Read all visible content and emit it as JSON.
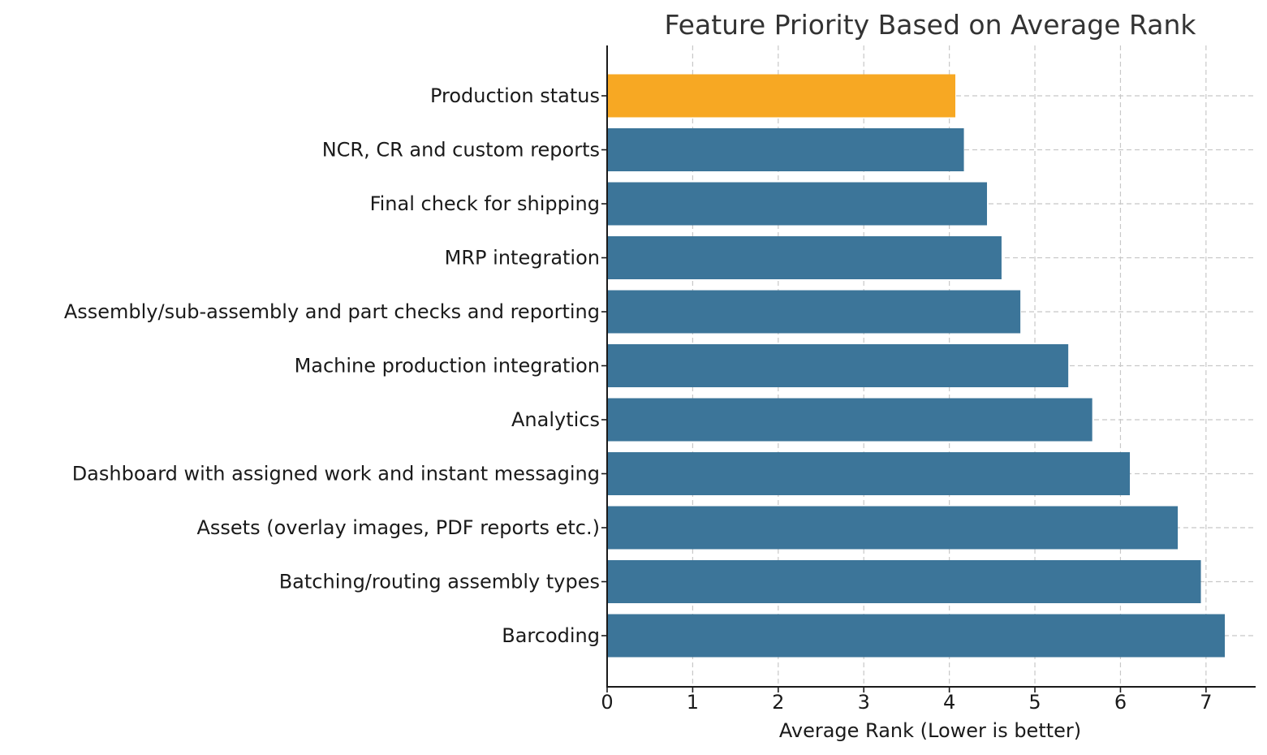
{
  "chart_data": {
    "type": "bar",
    "orientation": "horizontal",
    "title": "Feature Priority Based on Average Rank",
    "xlabel": "Average Rank (Lower is better)",
    "ylabel": "",
    "xlim": [
      0,
      7.58
    ],
    "xticks": [
      "0",
      "1",
      "2",
      "3",
      "4",
      "5",
      "6",
      "7"
    ],
    "grid": true,
    "categories": [
      "Production status",
      "NCR, CR and custom reports",
      "Final check for shipping",
      "MRP integration",
      "Assembly/sub-assembly and part checks and reporting",
      "Machine production integration",
      "Analytics",
      "Dashboard with assigned work and instant messaging",
      "Assets (overlay images, PDF reports etc.)",
      "Batching/routing assembly types",
      "Barcoding"
    ],
    "values": [
      4.07,
      4.17,
      4.44,
      4.61,
      4.83,
      5.39,
      5.67,
      6.11,
      6.67,
      6.94,
      7.22
    ],
    "highlight_index": 0,
    "colors": {
      "bar": "#3c7599",
      "highlight": "#f7a823",
      "grid": "#c8c8c8",
      "text": "#1a1a1a",
      "title": "#333333"
    }
  }
}
